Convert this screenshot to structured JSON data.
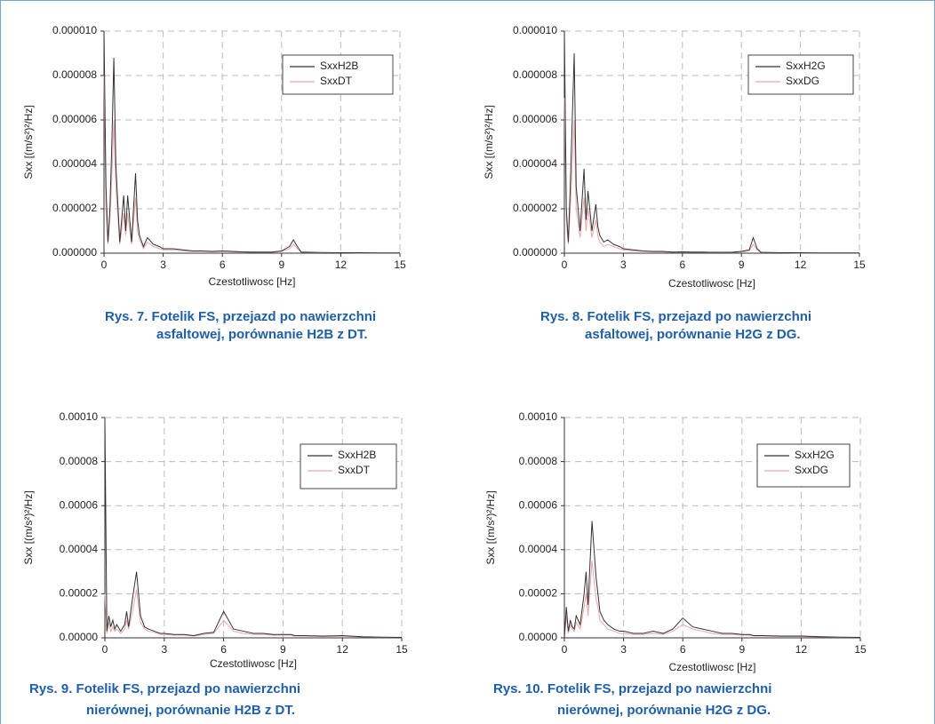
{
  "chart_data": [
    {
      "type": "line",
      "caption": [
        "Rys. 7. Fotelik FS, przejazd po nawierzchni",
        "asfaltowej, porównanie H2B z DT."
      ],
      "xlabel": "Czestotliwosc [Hz]",
      "ylabel": "Sxx [(m/s²)²/Hz]",
      "grid": true,
      "xlim": [
        0,
        15
      ],
      "xticks": [
        0,
        3,
        6,
        9,
        12,
        15
      ],
      "ylim": [
        0,
        1e-05
      ],
      "yticks": [
        {
          "value": 0,
          "label": "0.000000"
        },
        {
          "value": 2e-06,
          "label": "0.000002"
        },
        {
          "value": 4e-06,
          "label": "0.000004"
        },
        {
          "value": 6e-06,
          "label": "0.000006"
        },
        {
          "value": 8e-06,
          "label": "0.000008"
        },
        {
          "value": 1e-05,
          "label": "0.000010"
        }
      ],
      "x": [
        0,
        0.1,
        0.2,
        0.3,
        0.4,
        0.5,
        0.6,
        0.8,
        1,
        1.1,
        1.2,
        1.4,
        1.6,
        1.7,
        1.8,
        2,
        2.2,
        2.5,
        2.8,
        3,
        3.5,
        4,
        4.5,
        5,
        5.5,
        6,
        6.5,
        7,
        7.5,
        8,
        8.5,
        9,
        9.4,
        9.6,
        9.8,
        10,
        11,
        12,
        13,
        14,
        15
      ],
      "series": [
        {
          "name": "SxxH2B",
          "color": "#333333",
          "values": [
            1e-05,
            3e-06,
            5e-07,
            2e-06,
            5e-06,
            8.8e-06,
            4e-06,
            5e-07,
            2.6e-06,
            1e-06,
            2.6e-06,
            5e-07,
            3.6e-06,
            1.5e-06,
            8e-07,
            3e-07,
            7e-07,
            4e-07,
            3e-07,
            2e-07,
            2e-07,
            1.5e-07,
            1e-07,
            1e-07,
            8e-08,
            1e-07,
            8e-08,
            6e-08,
            5e-08,
            5e-08,
            5e-08,
            1e-07,
            3e-07,
            6e-07,
            3e-07,
            5e-08,
            3e-08,
            2e-08,
            2e-08,
            1e-08,
            1e-08
          ]
        },
        {
          "name": "SxxDT",
          "color": "#eaa8a8",
          "values": [
            8e-06,
            2e-06,
            4e-07,
            1.5e-06,
            3.5e-06,
            6e-06,
            3e-06,
            4e-07,
            1.8e-06,
            8e-07,
            1.8e-06,
            4e-07,
            2.5e-06,
            1e-06,
            6e-07,
            2e-07,
            5e-07,
            3e-07,
            2e-07,
            1.5e-07,
            1.5e-07,
            1e-07,
            8e-08,
            8e-08,
            6e-08,
            8e-08,
            6e-08,
            5e-08,
            4e-08,
            4e-08,
            4e-08,
            8e-08,
            2e-07,
            4e-07,
            2e-07,
            4e-08,
            2e-08,
            2e-08,
            1e-08,
            1e-08,
            1e-08
          ]
        }
      ]
    },
    {
      "type": "line",
      "caption": [
        "Rys. 8. Fotelik FS, przejazd po nawierzchni",
        "asfaltowej, porównanie H2G z DG."
      ],
      "xlabel": "Czestotliwosc [Hz]",
      "ylabel": "Sxx [(m/s²)²/Hz]",
      "grid": true,
      "xlim": [
        0,
        15
      ],
      "xticks": [
        0,
        3,
        6,
        9,
        12,
        15
      ],
      "ylim": [
        0,
        1e-05
      ],
      "yticks": [
        {
          "value": 0,
          "label": "0.000000"
        },
        {
          "value": 2e-06,
          "label": "0.000002"
        },
        {
          "value": 4e-06,
          "label": "0.000004"
        },
        {
          "value": 6e-06,
          "label": "0.000006"
        },
        {
          "value": 8e-06,
          "label": "0.000008"
        },
        {
          "value": 1e-05,
          "label": "0.000010"
        }
      ],
      "x": [
        0,
        0.1,
        0.2,
        0.3,
        0.4,
        0.5,
        0.6,
        0.8,
        1,
        1.1,
        1.2,
        1.4,
        1.6,
        1.7,
        1.8,
        2,
        2.2,
        2.5,
        2.8,
        3,
        3.5,
        4,
        4.5,
        5,
        5.5,
        6,
        6.5,
        7,
        7.5,
        8,
        8.5,
        9,
        9.4,
        9.6,
        9.8,
        10,
        11,
        12,
        13,
        14,
        15
      ],
      "series": [
        {
          "name": "SxxH2G",
          "color": "#333333",
          "values": [
            1e-05,
            2e-06,
            5e-07,
            3e-06,
            6e-06,
            9e-06,
            3e-06,
            1e-06,
            3.8e-06,
            1.5e-06,
            2.8e-06,
            1e-06,
            2.2e-06,
            1.2e-06,
            8e-07,
            5e-07,
            6e-07,
            4e-07,
            3e-07,
            2e-07,
            1.5e-07,
            1e-07,
            8e-08,
            8e-08,
            5e-08,
            6e-08,
            5e-08,
            5e-08,
            4e-08,
            4e-08,
            4e-08,
            8e-08,
            1.5e-07,
            7e-07,
            2e-07,
            4e-08,
            2e-08,
            2e-08,
            1e-08,
            1e-08,
            1e-08
          ]
        },
        {
          "name": "SxxDG",
          "color": "#eaa8a8",
          "values": [
            7e-06,
            1.5e-06,
            4e-07,
            2e-06,
            4e-06,
            6e-06,
            2e-06,
            7e-07,
            2.5e-06,
            1e-06,
            2e-06,
            7e-07,
            1.5e-06,
            8e-07,
            5e-07,
            3e-07,
            4e-07,
            3e-07,
            2e-07,
            1.5e-07,
            1e-07,
            8e-08,
            6e-08,
            6e-08,
            4e-08,
            5e-08,
            4e-08,
            4e-08,
            3e-08,
            3e-08,
            3e-08,
            6e-08,
            1e-07,
            4e-07,
            1.5e-07,
            3e-08,
            2e-08,
            1e-08,
            1e-08,
            1e-08,
            1e-08
          ]
        }
      ]
    },
    {
      "type": "line",
      "caption": [
        "Rys. 9. Fotelik FS, przejazd po nawierzchni",
        "nierównej, porównanie H2B z DT."
      ],
      "xlabel": "Czestotliwosc [Hz]",
      "ylabel": "Sxx [(m/s²)²/Hz]",
      "grid": true,
      "xlim": [
        0,
        15
      ],
      "xticks": [
        0,
        3,
        6,
        9,
        12,
        15
      ],
      "ylim": [
        0,
        0.0001
      ],
      "yticks": [
        {
          "value": 0,
          "label": "0.00000"
        },
        {
          "value": 2e-05,
          "label": "0.00002"
        },
        {
          "value": 4e-05,
          "label": "0.00004"
        },
        {
          "value": 6e-05,
          "label": "0.00006"
        },
        {
          "value": 8e-05,
          "label": "0.00008"
        },
        {
          "value": 0.0001,
          "label": "0.00010"
        }
      ],
      "x": [
        0,
        0.1,
        0.2,
        0.3,
        0.4,
        0.5,
        0.6,
        0.8,
        1,
        1.1,
        1.2,
        1.4,
        1.6,
        1.7,
        1.8,
        2,
        2.2,
        2.5,
        2.8,
        3,
        3.5,
        4,
        4.5,
        5,
        5.5,
        6,
        6.5,
        7,
        7.5,
        8,
        8.5,
        9,
        9.4,
        9.6,
        9.8,
        10,
        11,
        12,
        13,
        14,
        15
      ],
      "series": [
        {
          "name": "SxxH2B",
          "color": "#333333",
          "values": [
            0.0001,
            3e-06,
            1e-05,
            5e-06,
            8e-06,
            4e-06,
            6e-06,
            3e-06,
            6e-06,
            1.2e-05,
            5e-06,
            1.8e-05,
            3e-05,
            2e-05,
            1e-05,
            5e-06,
            4e-06,
            3e-06,
            2e-06,
            2e-06,
            1.5e-06,
            1.5e-06,
            1e-06,
            2e-06,
            2.5e-06,
            1.2e-05,
            4e-06,
            3e-06,
            2e-06,
            2e-06,
            1.5e-06,
            1.5e-06,
            1.5e-06,
            1e-06,
            1e-06,
            1e-06,
            8e-07,
            1e-06,
            5e-07,
            3e-07,
            2e-07
          ]
        },
        {
          "name": "SxxDT",
          "color": "#eaa8a8",
          "values": [
            2e-05,
            2e-06,
            7e-06,
            3e-06,
            5e-06,
            3e-06,
            4e-06,
            2e-06,
            4e-06,
            8e-06,
            4e-06,
            1.2e-05,
            2.2e-05,
            1.4e-05,
            7e-06,
            4e-06,
            3e-06,
            2.5e-06,
            1.5e-06,
            1.5e-06,
            1.2e-06,
            1.2e-06,
            8e-07,
            1.5e-06,
            2e-06,
            8e-06,
            3e-06,
            2e-06,
            1.5e-06,
            1.5e-06,
            1.2e-06,
            1.2e-06,
            1.2e-06,
            8e-07,
            8e-07,
            8e-07,
            6e-07,
            8e-07,
            4e-07,
            2e-07,
            2e-07
          ]
        }
      ]
    },
    {
      "type": "line",
      "caption": [
        "Rys. 10. Fotelik FS, przejazd po nawierzchni",
        "nierównej, porównanie H2G z DG."
      ],
      "xlabel": "Czestotliwosc [Hz]",
      "ylabel": "Sxx [(m/s²)²/Hz]",
      "grid": true,
      "xlim": [
        0,
        15
      ],
      "xticks": [
        0,
        3,
        6,
        9,
        12,
        15
      ],
      "ylim": [
        0,
        0.0001
      ],
      "yticks": [
        {
          "value": 0,
          "label": "0.00000"
        },
        {
          "value": 2e-05,
          "label": "0.00002"
        },
        {
          "value": 4e-05,
          "label": "0.00004"
        },
        {
          "value": 6e-05,
          "label": "0.00006"
        },
        {
          "value": 8e-05,
          "label": "0.00008"
        },
        {
          "value": 0.0001,
          "label": "0.00010"
        }
      ],
      "x": [
        0,
        0.1,
        0.2,
        0.3,
        0.4,
        0.5,
        0.6,
        0.8,
        1,
        1.1,
        1.2,
        1.4,
        1.6,
        1.7,
        1.8,
        2,
        2.2,
        2.5,
        2.8,
        3,
        3.5,
        4,
        4.5,
        5,
        5.5,
        6,
        6.5,
        7,
        7.5,
        8,
        8.5,
        9,
        9.4,
        9.6,
        9.8,
        10,
        11,
        12,
        13,
        14,
        15
      ],
      "series": [
        {
          "name": "SxxH2G",
          "color": "#333333",
          "values": [
            0,
            1.4e-05,
            3e-06,
            8e-06,
            5e-06,
            4e-06,
            1e-05,
            6e-06,
            2e-05,
            3e-05,
            1.5e-05,
            5.3e-05,
            2.8e-05,
            2e-05,
            1.2e-05,
            8e-06,
            6e-06,
            4e-06,
            3e-06,
            3e-06,
            2e-06,
            2e-06,
            3e-06,
            2e-06,
            4e-06,
            9e-06,
            5e-06,
            4e-06,
            3e-06,
            2e-06,
            2e-06,
            1.5e-06,
            1.5e-06,
            1e-06,
            1e-06,
            1e-06,
            8e-07,
            8e-07,
            5e-07,
            3e-07,
            2e-07
          ]
        },
        {
          "name": "SxxDG",
          "color": "#eaa8a8",
          "values": [
            0,
            1e-05,
            2e-06,
            6e-06,
            4e-06,
            3e-06,
            7e-06,
            4e-06,
            1.4e-05,
            2e-05,
            1e-05,
            3.5e-05,
            1.8e-05,
            1.4e-05,
            8e-06,
            6e-06,
            4e-06,
            3e-06,
            2e-06,
            2e-06,
            1.5e-06,
            1.5e-06,
            2e-06,
            1.5e-06,
            3e-06,
            6e-06,
            4e-06,
            3e-06,
            2e-06,
            1.5e-06,
            1.5e-06,
            1.2e-06,
            1.2e-06,
            8e-07,
            8e-07,
            8e-07,
            6e-07,
            6e-07,
            4e-07,
            2e-07,
            2e-07
          ]
        }
      ]
    }
  ]
}
